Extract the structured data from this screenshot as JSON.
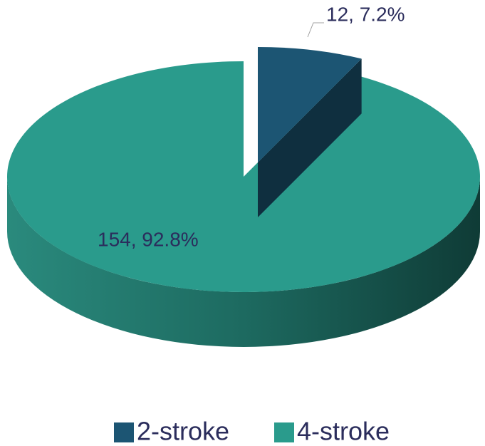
{
  "chart_data": {
    "type": "pie3d",
    "categories": [
      "2-stroke",
      "4-stroke"
    ],
    "values": [
      12,
      154
    ],
    "value_labels": [
      "12, 7.2%",
      "154, 92.8%"
    ],
    "colors": [
      "#1c5573",
      "#2a9b8c"
    ],
    "legend": "bottom"
  }
}
